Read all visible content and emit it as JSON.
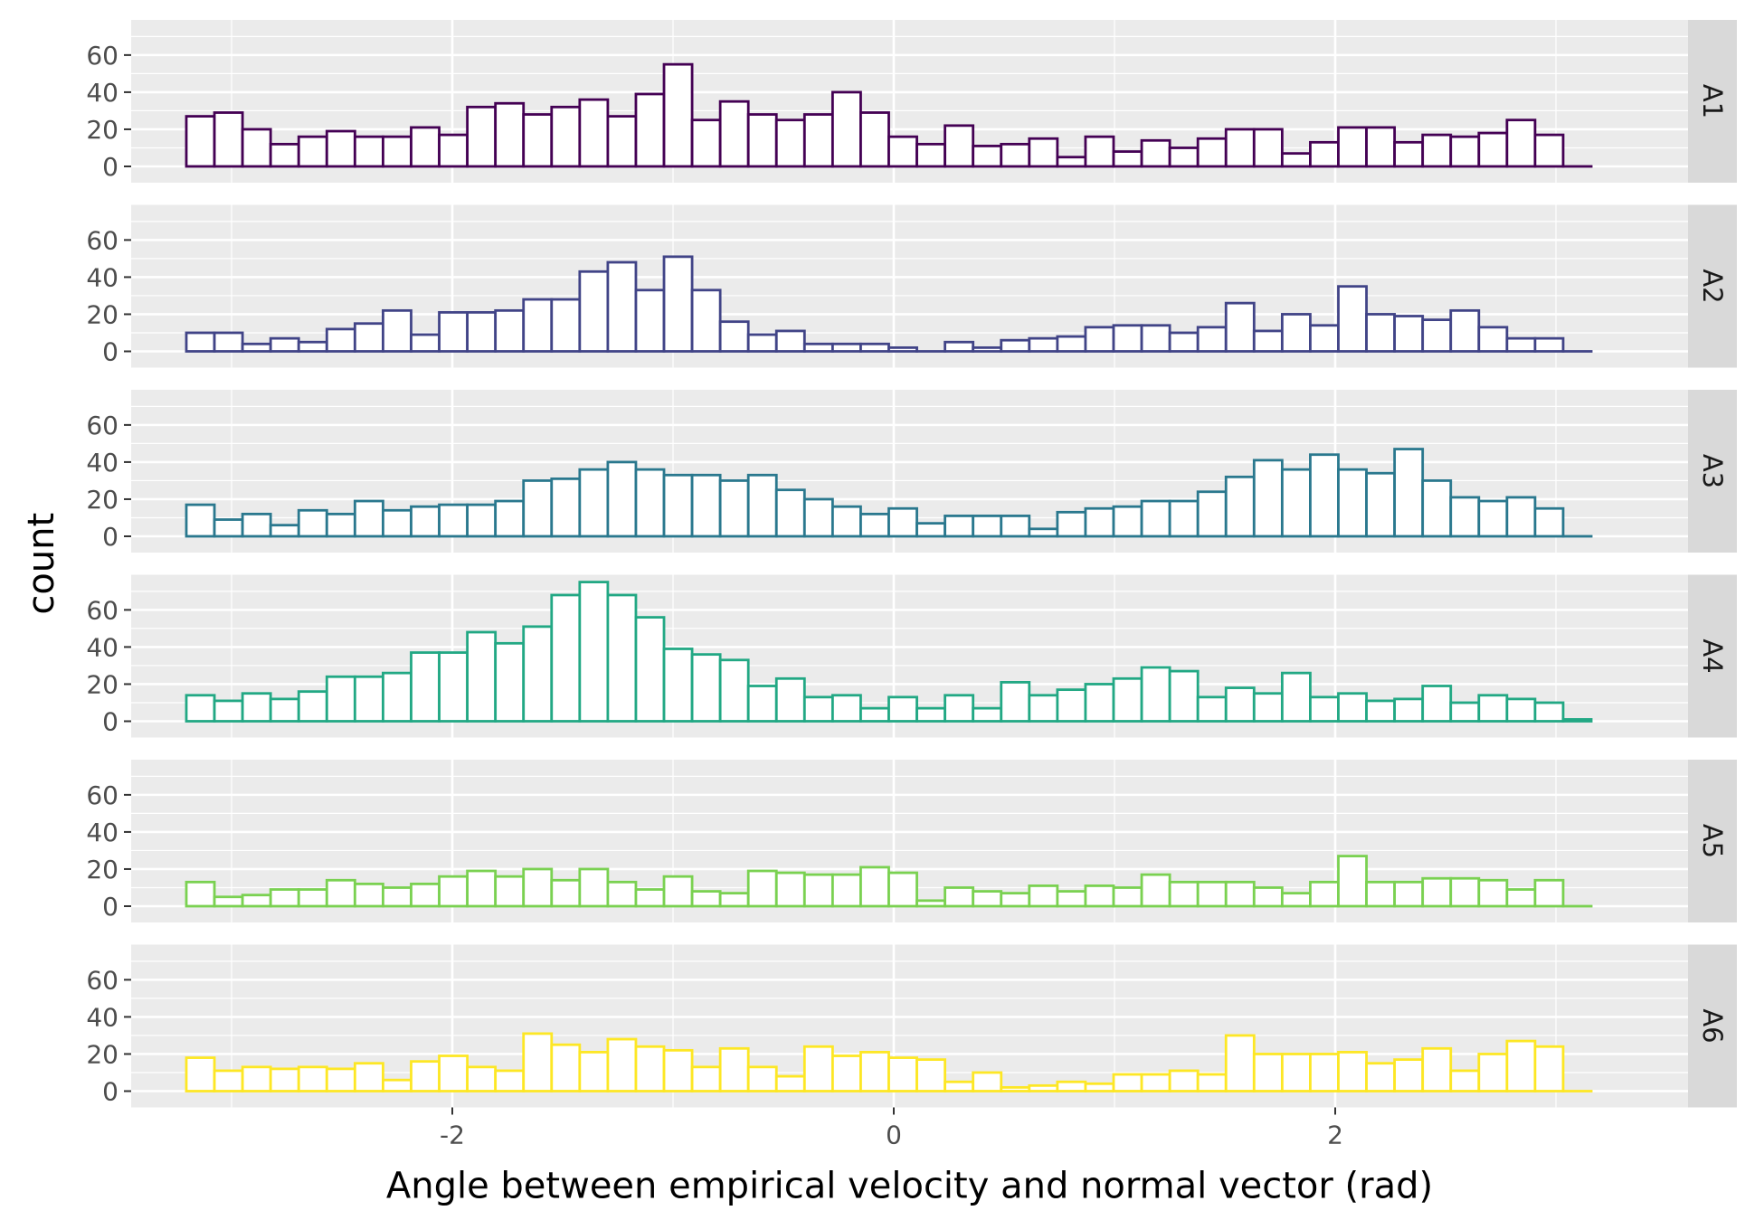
{
  "chart_data": {
    "type": "bar",
    "subtype": "faceted-histogram",
    "xlabel": "Angle between empirical velocity and normal vector (rad)",
    "ylabel": "count",
    "xlim": [
      -3.5,
      3.5
    ],
    "ylim": [
      0,
      77
    ],
    "x_ticks": [
      -2,
      0,
      2
    ],
    "x_tick_labels": [
      "-2",
      "0",
      "2"
    ],
    "y_ticks": [
      0,
      20,
      40,
      60
    ],
    "y_tick_labels": [
      "0",
      "20",
      "40",
      "60"
    ],
    "bin_start": -3.205,
    "bin_width": 0.1273,
    "grid": true,
    "panel_background": "#ebebeb",
    "strip_background": "#d9d9d9",
    "bar_fill": "#ffffff",
    "facets": [
      {
        "label": "A1",
        "color": "#440154",
        "values": [
          27,
          29,
          20,
          12,
          16,
          19,
          16,
          16,
          21,
          17,
          32,
          34,
          28,
          32,
          36,
          27,
          39,
          55,
          25,
          35,
          28,
          25,
          28,
          40,
          29,
          16,
          12,
          22,
          11,
          12,
          15,
          5,
          16,
          8,
          14,
          10,
          15,
          20,
          20,
          7,
          13,
          21,
          21,
          13,
          17,
          16,
          18,
          25,
          17,
          0
        ]
      },
      {
        "label": "A2",
        "color": "#414487",
        "values": [
          10,
          10,
          4,
          7,
          5,
          12,
          15,
          22,
          9,
          21,
          21,
          22,
          28,
          28,
          43,
          48,
          33,
          51,
          33,
          16,
          9,
          11,
          4,
          4,
          4,
          2,
          0,
          5,
          2,
          6,
          7,
          8,
          13,
          14,
          14,
          10,
          13,
          26,
          11,
          20,
          14,
          35,
          20,
          19,
          17,
          22,
          13,
          7,
          7,
          0
        ]
      },
      {
        "label": "A3",
        "color": "#2a788e",
        "values": [
          17,
          9,
          12,
          6,
          14,
          12,
          19,
          14,
          16,
          17,
          17,
          19,
          30,
          31,
          36,
          40,
          36,
          33,
          33,
          30,
          33,
          25,
          20,
          16,
          12,
          15,
          7,
          11,
          11,
          11,
          4,
          13,
          15,
          16,
          19,
          19,
          24,
          32,
          41,
          36,
          44,
          36,
          34,
          47,
          30,
          21,
          19,
          21,
          15,
          0
        ]
      },
      {
        "label": "A4",
        "color": "#22a884",
        "values": [
          14,
          11,
          15,
          12,
          16,
          24,
          24,
          26,
          37,
          37,
          48,
          42,
          51,
          68,
          75,
          68,
          56,
          39,
          36,
          33,
          19,
          23,
          13,
          14,
          7,
          13,
          7,
          14,
          7,
          21,
          14,
          17,
          20,
          23,
          29,
          27,
          13,
          18,
          15,
          26,
          13,
          15,
          11,
          12,
          19,
          10,
          14,
          12,
          10,
          1
        ]
      },
      {
        "label": "A5",
        "color": "#7ad151",
        "values": [
          13,
          5,
          6,
          9,
          9,
          14,
          12,
          10,
          12,
          16,
          19,
          16,
          20,
          14,
          20,
          13,
          9,
          16,
          8,
          7,
          19,
          18,
          17,
          17,
          21,
          18,
          3,
          10,
          8,
          7,
          11,
          8,
          11,
          10,
          17,
          13,
          13,
          13,
          10,
          7,
          13,
          27,
          13,
          13,
          15,
          15,
          14,
          9,
          14,
          0
        ]
      },
      {
        "label": "A6",
        "color": "#fde725",
        "values": [
          18,
          11,
          13,
          12,
          13,
          12,
          15,
          6,
          16,
          19,
          13,
          11,
          31,
          25,
          21,
          28,
          24,
          22,
          13,
          23,
          13,
          8,
          24,
          19,
          21,
          18,
          17,
          5,
          10,
          2,
          3,
          5,
          4,
          9,
          9,
          11,
          9,
          30,
          20,
          20,
          20,
          21,
          15,
          17,
          23,
          11,
          20,
          27,
          24,
          0
        ]
      }
    ]
  }
}
